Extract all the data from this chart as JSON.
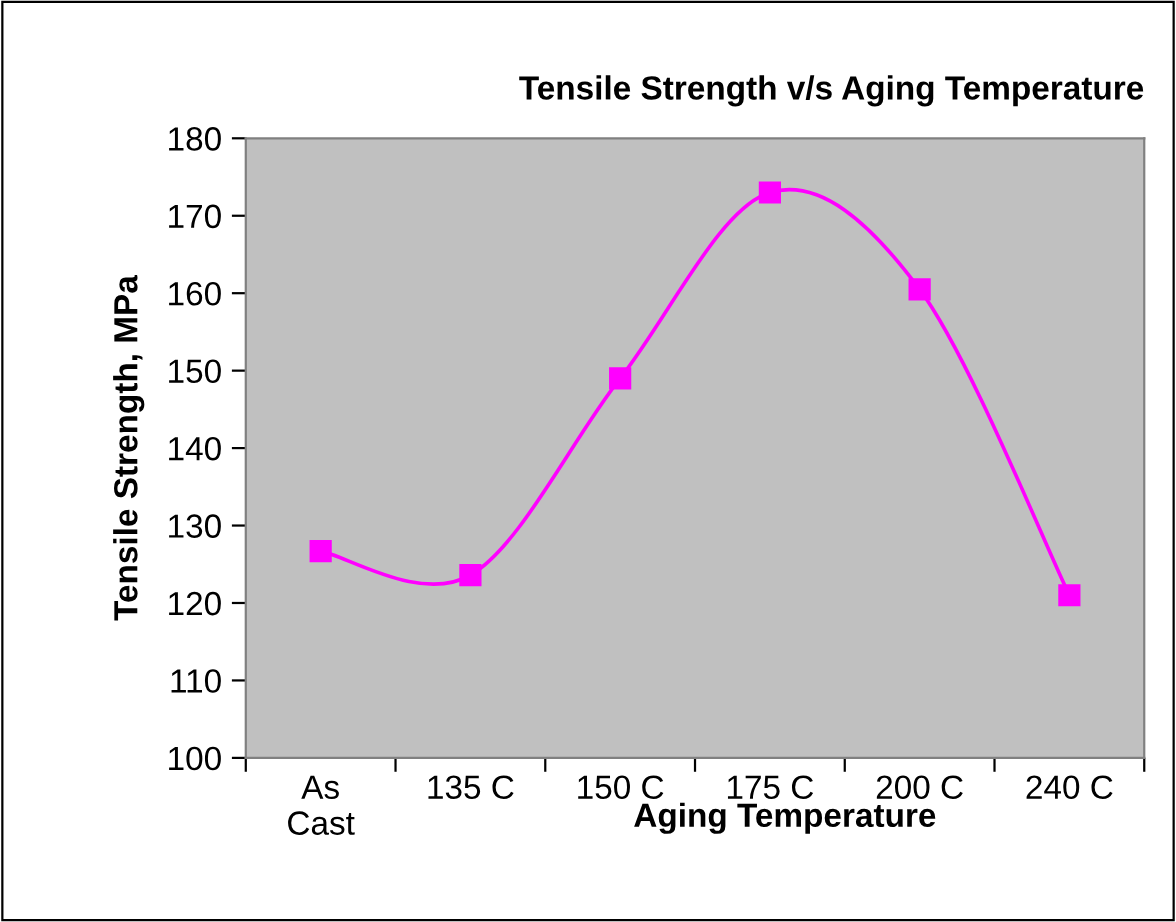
{
  "chart_data": {
    "type": "line",
    "title": "Tensile Strength v/s Aging Temperature",
    "xlabel": "Aging Temperature",
    "ylabel": "Tensile Strength, MPa",
    "categories": [
      "As\nCast",
      "135 C",
      "150 C",
      "175 C",
      "200 C",
      "240 C"
    ],
    "series": [
      {
        "color": "#ff00ff",
        "values": [
          126.7,
          123.6,
          149,
          173,
          160.5,
          121
        ]
      }
    ],
    "ylim": [
      100,
      180
    ],
    "yticks": [
      100,
      110,
      120,
      130,
      140,
      150,
      160,
      170,
      180
    ],
    "grid": false,
    "legend": false,
    "marker": "square",
    "line_style": "solid"
  }
}
